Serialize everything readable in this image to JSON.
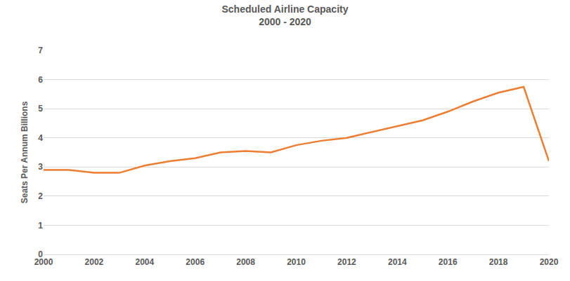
{
  "chart_data": {
    "type": "line",
    "title": "Scheduled Airline Capacity",
    "subtitle": "2000 - 2020",
    "y_label": "Seats Per Annum Billions",
    "x": [
      2000,
      2001,
      2002,
      2003,
      2004,
      2005,
      2006,
      2007,
      2008,
      2009,
      2010,
      2011,
      2012,
      2013,
      2014,
      2015,
      2016,
      2017,
      2018,
      2019,
      2020
    ],
    "values": [
      2.9,
      2.9,
      2.8,
      2.8,
      3.05,
      3.2,
      3.3,
      3.5,
      3.55,
      3.5,
      3.75,
      3.9,
      4.0,
      4.2,
      4.4,
      4.6,
      4.9,
      5.25,
      5.55,
      5.75,
      3.2
    ],
    "color": "#ed7d31",
    "xlim": [
      2000,
      2020
    ],
    "xticks": [
      2000,
      2002,
      2004,
      2006,
      2008,
      2010,
      2012,
      2014,
      2016,
      2018,
      2020
    ],
    "ylim": [
      0,
      7
    ],
    "yticks": [
      0,
      1,
      2,
      3,
      4,
      5,
      6,
      7
    ],
    "grid": true
  }
}
